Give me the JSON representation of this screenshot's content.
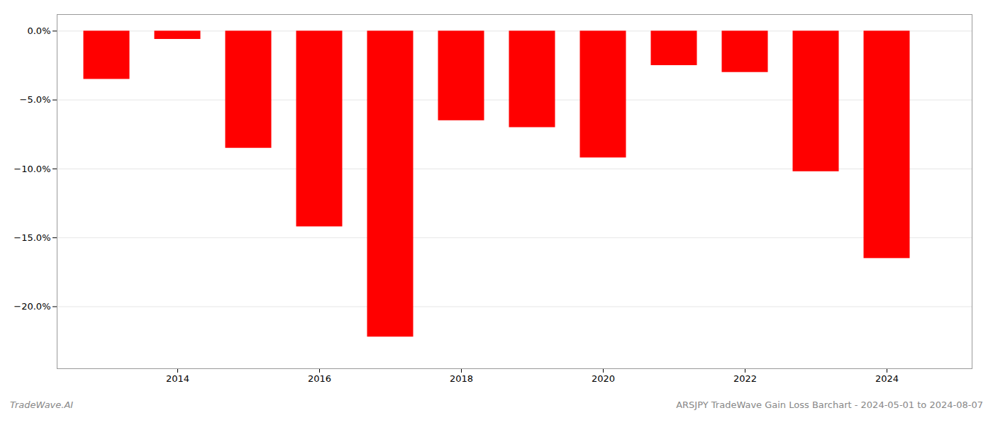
{
  "chart_data": {
    "type": "bar",
    "x": [
      2013,
      2014,
      2015,
      2016,
      2017,
      2018,
      2019,
      2020,
      2021,
      2022,
      2023,
      2024
    ],
    "values": [
      -3.5,
      -0.6,
      -8.5,
      -14.2,
      -22.2,
      -6.5,
      -7.0,
      -9.2,
      -2.5,
      -3.0,
      -10.2,
      -16.5
    ],
    "color": "#ff0000",
    "xlim": [
      2012.3,
      2025.2
    ],
    "xticks": [
      2014,
      2016,
      2018,
      2020,
      2022,
      2024
    ],
    "ylim": [
      -24.5,
      1.2
    ],
    "yticks": [
      {
        "value": 0,
        "label": "0.0%"
      },
      {
        "value": -5,
        "label": "−5.0%"
      },
      {
        "value": -10,
        "label": "−10.0%"
      },
      {
        "value": -15,
        "label": "−15.0%"
      },
      {
        "value": -20,
        "label": "−20.0%"
      }
    ],
    "grid": true,
    "annotations": [
      "TradeWave.AI",
      "ARSJPY TradeWave Gain Loss Barchart - 2024-05-01 to 2024-08-07"
    ]
  }
}
